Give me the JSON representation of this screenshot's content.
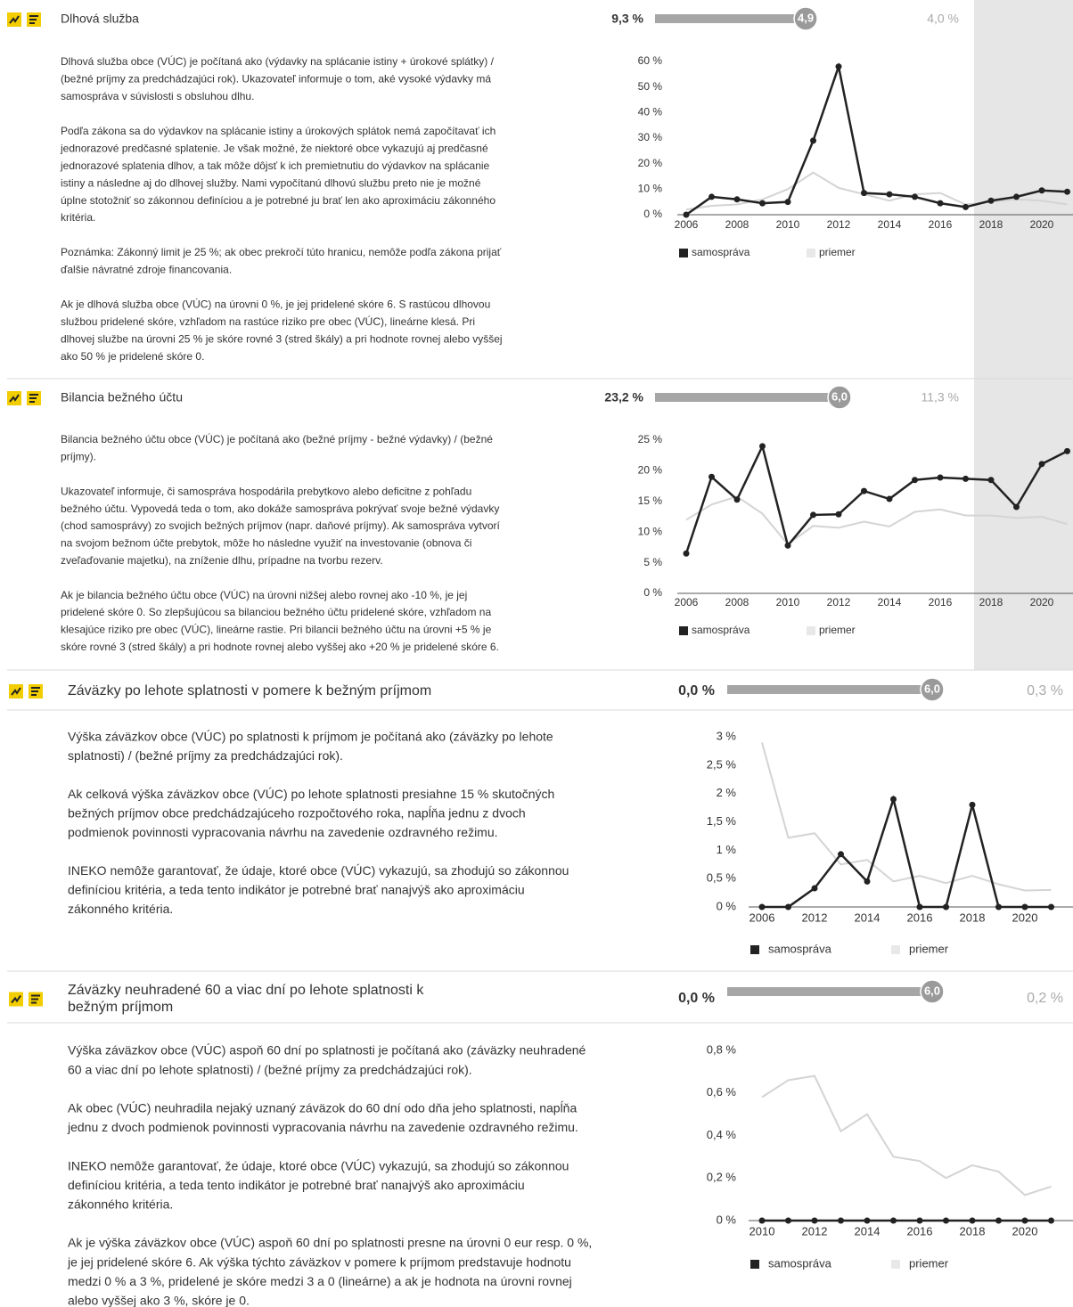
{
  "sections": [
    {
      "title": [
        "Dlhová služba"
      ],
      "value": "9,3 %",
      "score": {
        "value": 4.9,
        "label": "4,9"
      },
      "score_lim": [
        0,
        6
      ],
      "average": "4,0 %",
      "paragraphs": [
        [
          "Dlhová služba obce (VÚC) je počítaná ako (výdavky na splácanie istiny + úrokové splátky) /",
          "(bežné príjmy za predchádzajúci rok). Ukazovateľ informuje o tom, aké vysoké výdavky má",
          "samospráva v súvislosti s obsluhou dlhu."
        ],
        [
          "Podľa zákona sa do výdavkov na splácanie istiny a úrokových splátok nemá započítavať ich",
          "jednorazové predčasné splatenie. Je však možné, že niektoré obce vykazujú aj predčasné",
          "jednorazové splatenia dlhov, a tak môže dôjsť k ich premietnutiu do výdavkov na splácanie",
          "istiny a následne aj do dlhovej služby. Nami vypočítanú dlhovú službu preto nie je možné",
          "úplne stotožniť so zákonnou definíciou a je potrebné ju brať len ako aproximáciu zákonného",
          "kritéria."
        ],
        [
          "Poznámka: Zákonný limit je 25 %; ak obec prekročí túto hranicu, nemôže podľa zákona prijať",
          "ďalšie návratné zdroje financovania."
        ],
        [
          "Ak je dlhová služba obce (VÚC) na úrovni 0 %, je jej pridelené skóre 6. S rastúcou dlhovou",
          "službou pridelené skóre, vzhľadom na rastúce riziko pre obec (VÚC), lineárne klesá. Pri",
          "dlhovej službe na úrovni 25 % je skóre rovné 3 (stred škály) a pri hodnote rovnej alebo vyššej",
          "ako 50 % je pridelené skóre 0."
        ]
      ],
      "chart": {
        "type": "line",
        "categories": [
          "2006",
          null,
          "2008",
          null,
          "2010",
          null,
          "2012",
          null,
          "2014",
          null,
          "2016",
          null,
          "2018",
          null,
          "2020",
          null
        ],
        "ylim": [
          0,
          60
        ],
        "yticks": [
          {
            "value": 0,
            "label": "0 %"
          },
          {
            "value": 10,
            "label": "10 %"
          },
          {
            "value": 20,
            "label": "20 %"
          },
          {
            "value": 30,
            "label": "30 %"
          },
          {
            "value": 40,
            "label": "40 %"
          },
          {
            "value": 50,
            "label": "50 %"
          },
          {
            "value": 60,
            "label": "60 %"
          }
        ],
        "series": [
          {
            "name": "samospráva",
            "color": "#222222",
            "values": [
              0,
              7,
              6,
              4.5,
              5,
              29,
              58,
              8.5,
              8,
              7,
              4.5,
              3,
              5.5,
              7,
              9.5,
              9
            ]
          },
          {
            "name": "priemer",
            "color": "#d4d4d4",
            "values": [
              2,
              3.5,
              4,
              6,
              10,
              16.5,
              10.5,
              8,
              5.5,
              8,
              8.5,
              4,
              5,
              6,
              5.5,
              4
            ]
          }
        ]
      }
    },
    {
      "title": [
        "Bilancia bežného účtu"
      ],
      "value": "23,2 %",
      "score": {
        "value": 6,
        "label": "6,0"
      },
      "score_lim": [
        0,
        6
      ],
      "average": "11,3 %",
      "paragraphs": [
        [
          "Bilancia bežného účtu obce (VÚC) je počítaná ako (bežné príjmy - bežné výdavky) / (bežné",
          "príjmy)."
        ],
        [
          "Ukazovateľ informuje, či samospráva hospodárila prebytkovo alebo deficitne z pohľadu",
          "bežného účtu. Vypovedá teda o tom, ako dokáže samospráva pokrývať svoje bežné výdavky",
          "(chod samosprávy) zo svojich bežných príjmov (napr. daňové príjmy). Ak samospráva vytvorí",
          "na svojom bežnom účte prebytok, môže ho následne využiť na investovanie (obnova či",
          "zveľaďovanie majetku), na zníženie dlhu, prípadne na tvorbu rezerv."
        ],
        [
          "Ak je bilancia bežného účtu obce (VÚC) na úrovni nižšej alebo rovnej ako -10 %, je jej",
          "pridelené skóre 0. So zlepšujúcou sa bilanciou bežného účtu pridelené skóre, vzhľadom na",
          "klesajúce riziko pre obec (VÚC), lineárne rastie. Pri bilancii bežného účtu na úrovni +5 % je",
          "skóre rovné 3 (stred škály) a pri hodnote rovnej alebo vyššej ako +20 % je pridelené skóre 6."
        ]
      ],
      "chart": {
        "type": "line",
        "categories": [
          "2006",
          null,
          "2008",
          null,
          "2010",
          null,
          "2012",
          null,
          "2014",
          null,
          "2016",
          null,
          "2018",
          null,
          "2020",
          null
        ],
        "ylim": [
          0,
          25
        ],
        "yticks": [
          {
            "value": 0,
            "label": "0 %"
          },
          {
            "value": 5,
            "label": "5 %"
          },
          {
            "value": 10,
            "label": "10 %"
          },
          {
            "value": 15,
            "label": "15 %"
          },
          {
            "value": 20,
            "label": "20 %"
          },
          {
            "value": 25,
            "label": "25 %"
          }
        ],
        "series": [
          {
            "name": "samospráva",
            "color": "#222222",
            "values": [
              6.5,
              19,
              15.3,
              24,
              7.8,
              12.8,
              12.9,
              16.7,
              15.4,
              18.5,
              18.9,
              18.7,
              18.5,
              14.1,
              21.1,
              23.2
            ]
          },
          {
            "name": "priemer",
            "color": "#d4d4d4",
            "values": [
              12,
              14.5,
              15.8,
              13,
              8,
              11,
              10.7,
              11.7,
              10.9,
              13.3,
              13.7,
              12.7,
              12.7,
              12.3,
              12.5,
              11.3
            ]
          }
        ]
      }
    },
    {
      "title": [
        "Záväzky po lehote splatnosti v pomere k bežným príjmom"
      ],
      "value": "0,0 %",
      "score": {
        "value": 6,
        "label": "6,0"
      },
      "score_lim": [
        0,
        6
      ],
      "average": "0,3 %",
      "paragraphs": [
        [
          "Výška záväzkov obce (VÚC) po splatnosti k príjmom je počítaná ako (záväzky po lehote",
          "splatnosti) / (bežné príjmy za predchádzajúci rok)."
        ],
        [
          "Ak celková výška záväzkov obce (VÚC) po lehote splatnosti presiahne 15 % skutočných",
          "bežných príjmov obce predchádzajúceho rozpočtového roka, napĺňa jednu z dvoch",
          "podmienok povinnosti vypracovania návrhu na zavedenie ozdravného režimu."
        ],
        [
          "INEKO nemôže garantovať, že údaje, ktoré obce (VÚC) vykazujú, sa zhodujú so zákonnou",
          "definíciou kritéria, a teda tento indikátor je potrebné brať nanajvýš ako aproximáciu",
          "zákonného kritéria."
        ]
      ],
      "chart": {
        "type": "line",
        "categories": [
          "2006",
          null,
          "2012",
          null,
          "2014",
          null,
          "2016",
          null,
          "2018",
          null,
          "2020",
          null
        ],
        "ylim": [
          0,
          3
        ],
        "yticks": [
          {
            "value": 0,
            "label": "0 %"
          },
          {
            "value": 0.5,
            "label": "0,5 %"
          },
          {
            "value": 1,
            "label": "1 %"
          },
          {
            "value": 1.5,
            "label": "1,5 %"
          },
          {
            "value": 2,
            "label": "2 %"
          },
          {
            "value": 2.5,
            "label": "2,5 %"
          },
          {
            "value": 3,
            "label": "3 %"
          }
        ],
        "series": [
          {
            "name": "samospráva",
            "color": "#222222",
            "values": [
              0,
              0,
              0.33,
              0.93,
              0.45,
              1.9,
              0,
              0,
              1.8,
              0,
              0,
              0
            ]
          },
          {
            "name": "priemer",
            "color": "#d4d4d4",
            "values": [
              2.9,
              1.22,
              1.3,
              0.75,
              0.83,
              0.45,
              0.55,
              0.42,
              0.55,
              0.4,
              0.29,
              0.3
            ]
          }
        ]
      }
    },
    {
      "title": [
        "Záväzky neuhradené 60 a viac dní po lehote splatnosti k",
        "bežným príjmom"
      ],
      "value": "0,0 %",
      "score": {
        "value": 6,
        "label": "6,0"
      },
      "score_lim": [
        0,
        6
      ],
      "average": "0,2 %",
      "paragraphs": [
        [
          "Výška záväzkov obce (VÚC) aspoň 60 dní po splatnosti je počítaná ako (záväzky neuhradené",
          "60 a viac dní po lehote splatnosti) / (bežné príjmy za predchádzajúci rok)."
        ],
        [
          "Ak obec (VÚC) neuhradila nejaký uznaný záväzok do 60 dní odo dňa jeho splatnosti, napĺňa",
          "jednu z dvoch podmienok povinnosti vypracovania návrhu na zavedenie ozdravného režimu."
        ],
        [
          "INEKO nemôže garantovať, že údaje, ktoré obce (VÚC) vykazujú, sa zhodujú so zákonnou",
          "definíciou kritéria, a teda tento indikátor je potrebné brať nanajvýš ako aproximáciu",
          "zákonného kritéria."
        ],
        [
          "Ak je výška záväzkov obce (VÚC) aspoň 60 dní po splatnosti presne na úrovni 0 eur resp. 0 %,",
          "je jej pridelené skóre 6. Ak výška týchto záväzkov v pomere k príjmom predstavuje hodnotu",
          "medzi 0 % a 3 %, pridelené je skóre medzi 3 a 0 (lineárne) a ak je hodnota na úrovni rovnej",
          "alebo vyššej ako 3 %, skóre je 0."
        ]
      ],
      "chart": {
        "type": "line",
        "categories": [
          "2010",
          null,
          "2012",
          null,
          "2014",
          null,
          "2016",
          null,
          "2018",
          null,
          "2020",
          null
        ],
        "ylim": [
          0,
          0.8
        ],
        "yticks": [
          {
            "value": 0,
            "label": "0 %"
          },
          {
            "value": 0.2,
            "label": "0,2 %"
          },
          {
            "value": 0.4,
            "label": "0,4 %"
          },
          {
            "value": 0.6,
            "label": "0,6 %"
          },
          {
            "value": 0.8,
            "label": "0,8 %"
          }
        ],
        "series": [
          {
            "name": "samospráva",
            "color": "#222222",
            "values": [
              0,
              0,
              0,
              0,
              0,
              0,
              0,
              0,
              0,
              0,
              0,
              0
            ]
          },
          {
            "name": "priemer",
            "color": "#d4d4d4",
            "values": [
              0.58,
              0.66,
              0.68,
              0.42,
              0.5,
              0.3,
              0.28,
              0.2,
              0.26,
              0.23,
              0.12,
              0.16
            ]
          }
        ]
      }
    }
  ]
}
